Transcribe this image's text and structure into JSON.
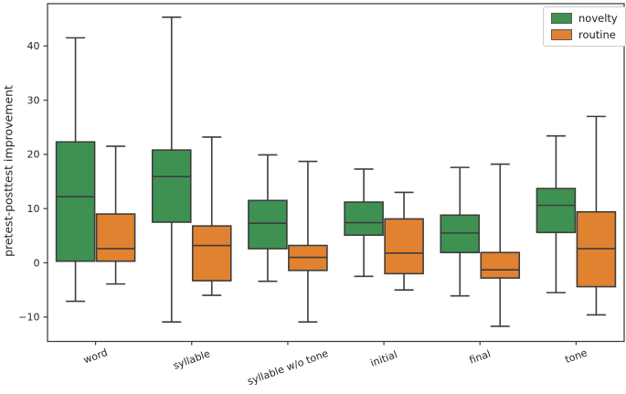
{
  "colors": {
    "novelty": "#3e9151",
    "routine": "#e08230",
    "box_edge": "#3d3d3d",
    "spine": "#3b3b3b",
    "tick_label": "#242424",
    "legend_border": "#cccccc",
    "background": "#ffffff"
  },
  "chart_data": {
    "type": "boxplot",
    "title": "",
    "xlabel": "",
    "ylabel": "pretest-posttest improvement",
    "categories": [
      "word",
      "syllable",
      "syllable w/o tone",
      "initial",
      "final",
      "tone"
    ],
    "yticks": [
      -10,
      0,
      10,
      20,
      30,
      40
    ],
    "ylim": [
      -14.5,
      47.8
    ],
    "grid": false,
    "legend": {
      "position": "upper right",
      "entries": [
        {
          "label": "novelty",
          "color": "#3e9151"
        },
        {
          "label": "routine",
          "color": "#e08230"
        }
      ]
    },
    "series": [
      {
        "name": "novelty",
        "color": "#3e9151",
        "boxes": [
          {
            "category": "word",
            "whisker_low": -7.1,
            "q1": 0.3,
            "median": 12.2,
            "q3": 22.3,
            "whisker_high": 41.5
          },
          {
            "category": "syllable",
            "whisker_low": -10.9,
            "q1": 7.5,
            "median": 15.9,
            "q3": 20.8,
            "whisker_high": 45.3
          },
          {
            "category": "syllable w/o tone",
            "whisker_low": -3.4,
            "q1": 2.6,
            "median": 7.3,
            "q3": 11.5,
            "whisker_high": 19.9
          },
          {
            "category": "initial",
            "whisker_low": -2.5,
            "q1": 5.1,
            "median": 7.4,
            "q3": 11.2,
            "whisker_high": 17.3
          },
          {
            "category": "final",
            "whisker_low": -6.1,
            "q1": 1.9,
            "median": 5.5,
            "q3": 8.8,
            "whisker_high": 17.6
          },
          {
            "category": "tone",
            "whisker_low": -5.5,
            "q1": 5.6,
            "median": 10.6,
            "q3": 13.7,
            "whisker_high": 23.4
          }
        ]
      },
      {
        "name": "routine",
        "color": "#e08230",
        "boxes": [
          {
            "category": "word",
            "whisker_low": -3.9,
            "q1": 0.3,
            "median": 2.6,
            "q3": 9.0,
            "whisker_high": 21.5
          },
          {
            "category": "syllable",
            "whisker_low": -6.0,
            "q1": -3.3,
            "median": 3.2,
            "q3": 6.8,
            "whisker_high": 23.2
          },
          {
            "category": "syllable w/o tone",
            "whisker_low": -10.9,
            "q1": -1.4,
            "median": 1.0,
            "q3": 3.2,
            "whisker_high": 18.7
          },
          {
            "category": "initial",
            "whisker_low": -5.0,
            "q1": -2.0,
            "median": 1.8,
            "q3": 8.1,
            "whisker_high": 13.0
          },
          {
            "category": "final",
            "whisker_low": -11.7,
            "q1": -2.8,
            "median": -1.3,
            "q3": 1.9,
            "whisker_high": 18.2
          },
          {
            "category": "tone",
            "whisker_low": -9.6,
            "q1": -4.4,
            "median": 2.6,
            "q3": 9.4,
            "whisker_high": 27.0
          }
        ]
      }
    ]
  }
}
